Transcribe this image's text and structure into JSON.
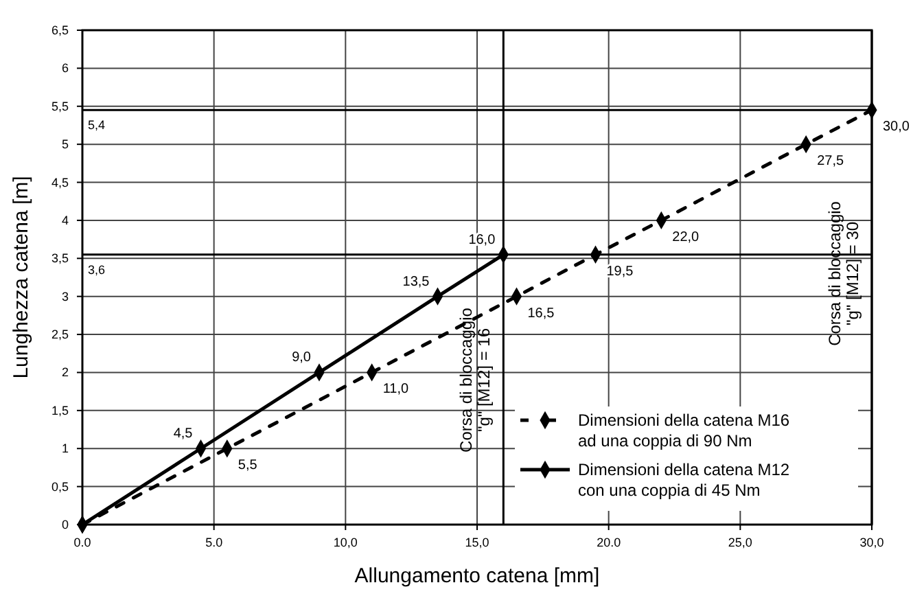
{
  "chart_data": {
    "type": "line",
    "xlabel": "Allungamento catena [mm]",
    "ylabel": "Lunghezza catena [m]",
    "xlim": [
      0,
      30
    ],
    "ylim": [
      0,
      6.5
    ],
    "xticks": [
      {
        "value": 0,
        "label": "0.0"
      },
      {
        "value": 5,
        "label": "5.0"
      },
      {
        "value": 10,
        "label": "10,0"
      },
      {
        "value": 15,
        "label": "15,0"
      },
      {
        "value": 20,
        "label": "20.0"
      },
      {
        "value": 25,
        "label": "25,0"
      },
      {
        "value": 30,
        "label": "30,0"
      }
    ],
    "yticks": [
      0,
      {
        "value": 0.5,
        "label": "0,5"
      },
      1,
      {
        "value": 1.5,
        "label": "1,5"
      },
      2,
      {
        "value": 2.5,
        "label": "2,5"
      },
      3,
      {
        "value": 3.5,
        "label": "3,5"
      },
      4,
      {
        "value": 4.5,
        "label": "4,5"
      },
      5,
      {
        "value": 5.5,
        "label": "5,5"
      },
      6,
      {
        "value": 6.5,
        "label": "6,5"
      }
    ],
    "grid": true,
    "legend": "bottom right",
    "marker": "diamond",
    "series": [
      {
        "name": "Dimensioni della catena M16\nad una coppia di 90 Nm",
        "color": "#000000",
        "line_style": "dashed",
        "x": [
          0,
          5.5,
          11,
          16.5,
          19.5,
          22,
          27.5,
          30
        ],
        "values": [
          0,
          1,
          2,
          3,
          3.55,
          4,
          5,
          5.45
        ]
      },
      {
        "name": "Dimensioni della catena M12\ncon una coppia di 45 Nm",
        "color": "#000000",
        "line_style": "solid",
        "x": [
          0,
          4.5,
          9,
          13.5,
          16
        ],
        "values": [
          0,
          1,
          2,
          3,
          3.55
        ]
      }
    ],
    "annotations": [
      {
        "text": "5,5",
        "x": 5.5,
        "y": 1
      },
      {
        "text": "11,0",
        "x": 11,
        "y": 2
      },
      {
        "text": "16,5",
        "x": 16.5,
        "y": 3
      },
      {
        "text": "19,5",
        "x": 19.5,
        "y": 3.55
      },
      {
        "text": "22,0",
        "x": 22,
        "y": 4
      },
      {
        "text": "27,5",
        "x": 27.5,
        "y": 5
      },
      {
        "text": "30,0",
        "x": 30,
        "y": 5.45
      },
      {
        "text": "4,5",
        "x": 4.5,
        "y": 1
      },
      {
        "text": "9,0",
        "x": 9,
        "y": 2
      },
      {
        "text": "13,5",
        "x": 13.5,
        "y": 3
      },
      {
        "text": "16,0",
        "x": 16,
        "y": 3.55
      }
    ],
    "ref_lines": [
      {
        "axis": "y",
        "value": 5.45,
        "label": "5,4"
      },
      {
        "axis": "y",
        "value": 3.55,
        "label": "3,6"
      },
      {
        "axis": "x",
        "value": 16,
        "label": "Corsa di bloccaggio\n\"g\" [M12] = 16"
      },
      {
        "axis": "x",
        "value": 30,
        "label": "Corsa di bloccaggio\n\"g\" [M12] = 30"
      }
    ]
  }
}
